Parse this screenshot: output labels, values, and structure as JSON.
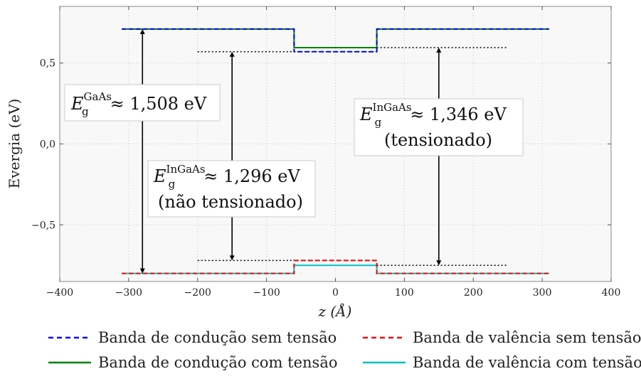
{
  "chart_data": {
    "type": "line",
    "title": "",
    "xlabel": "z (Å)",
    "ylabel": "Evergia (eV)",
    "xlim": [
      -400,
      400
    ],
    "ylim": [
      -0.85,
      0.85
    ],
    "x_ticks": [
      -400,
      -300,
      -200,
      -100,
      0,
      100,
      200,
      300,
      400
    ],
    "x_tick_labels": [
      "−400",
      "−300",
      "−200",
      "−100",
      "0",
      "100",
      "200",
      "300",
      "400"
    ],
    "y_ticks": [
      -0.5,
      0.0,
      0.5
    ],
    "y_tick_labels": [
      "−0,5",
      "0,0",
      "0,5"
    ],
    "grid": true,
    "legend_position": "below",
    "series": [
      {
        "name": "Banda de condução sem tensão",
        "color": "#0000ff",
        "dash": "dashed",
        "x": [
          -310,
          -60,
          -60,
          60,
          60,
          310
        ],
        "y": [
          0.71,
          0.71,
          0.57,
          0.57,
          0.71,
          0.71
        ]
      },
      {
        "name": "Banda de valência sem tensão",
        "color": "#ff0000",
        "dash": "dashed",
        "x": [
          -310,
          -60,
          -60,
          60,
          60,
          310
        ],
        "y": [
          -0.8,
          -0.8,
          -0.72,
          -0.72,
          -0.8,
          -0.8
        ]
      },
      {
        "name": "Banda de condução com tensão",
        "color": "#008000",
        "dash": "solid",
        "x": [
          -310,
          -60,
          -60,
          60,
          60,
          310
        ],
        "y": [
          0.71,
          0.71,
          0.595,
          0.595,
          0.71,
          0.71
        ]
      },
      {
        "name": "Banda de valência com tensão",
        "color": "#00bfbf",
        "dash": "solid",
        "x": [
          -310,
          -60,
          -60,
          60,
          60,
          310
        ],
        "y": [
          -0.8,
          -0.8,
          -0.75,
          -0.75,
          -0.8,
          -0.8
        ]
      }
    ],
    "reference_lines": [
      {
        "x": [
          -200,
          60
        ],
        "y": 0.57
      },
      {
        "x": [
          -200,
          60
        ],
        "y": -0.72
      },
      {
        "x": [
          60,
          250
        ],
        "y": 0.595
      },
      {
        "x": [
          60,
          250
        ],
        "y": -0.75
      }
    ],
    "arrows": [
      {
        "x": -280,
        "y_from": -0.8,
        "y_to": 0.71
      },
      {
        "x": -150,
        "y_from": -0.72,
        "y_to": 0.57
      },
      {
        "x": 150,
        "y_from": -0.75,
        "y_to": 0.595
      }
    ],
    "annotations": [
      {
        "base": "E",
        "sub": "g",
        "sup": "GaAs",
        "value": "≈ 1,508 eV",
        "note": ""
      },
      {
        "base": "E",
        "sub": "g",
        "sup": "InGaAs",
        "value": "≈ 1,296 eV",
        "note": "(não tensionado)"
      },
      {
        "base": "E",
        "sub": "g",
        "sup": "InGaAs",
        "value": "≈ 1,346 eV",
        "note": "(tensionado)"
      }
    ]
  }
}
